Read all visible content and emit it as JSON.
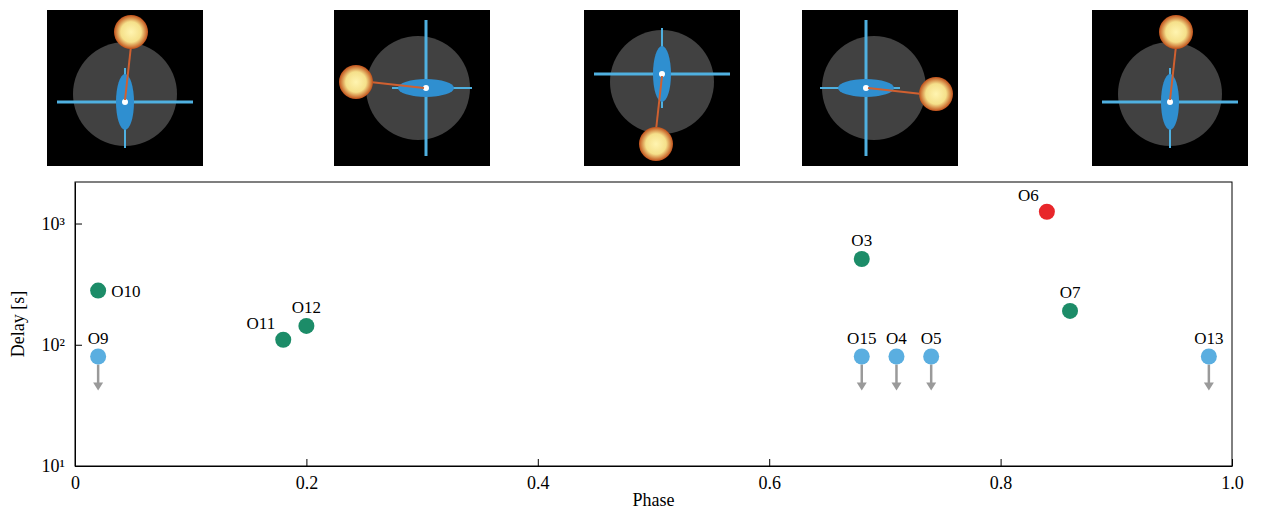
{
  "chart_data": {
    "type": "scatter",
    "x_label": "Phase",
    "y_label": "Delay [s]",
    "xlim": [
      0,
      1
    ],
    "ylim": [
      10,
      2200
    ],
    "xticks": [
      0,
      0.2,
      0.4,
      0.6,
      0.8,
      {
        "value": 1,
        "label": "1.0"
      }
    ],
    "yticks": [
      {
        "value": 10,
        "label": "10¹"
      },
      {
        "value": 100,
        "label": "10²"
      },
      {
        "value": 1000,
        "label": "10³"
      }
    ],
    "log": "y",
    "grid": false,
    "series": [
      {
        "color": "#1c8c68",
        "marker": "circle",
        "x": [
          0.02,
          0.18,
          0.2,
          0.68,
          0.86
        ],
        "values": [
          280,
          110,
          143,
          510,
          190
        ],
        "labels": [
          "O10",
          "O11",
          "O12",
          "O3",
          "O7"
        ]
      },
      {
        "color": "#5aaee0",
        "marker": "arrow_down",
        "x": [
          0.02,
          0.68,
          0.71,
          0.74,
          0.98
        ],
        "values": [
          80,
          80,
          80,
          80,
          80
        ],
        "labels": [
          "O9",
          "O15",
          "O4",
          "O5",
          "O13"
        ]
      },
      {
        "color": "#e8262a",
        "marker": "circle",
        "x": [
          0.84
        ],
        "values": [
          1250
        ],
        "labels": [
          "O6"
        ]
      }
    ]
  }
}
